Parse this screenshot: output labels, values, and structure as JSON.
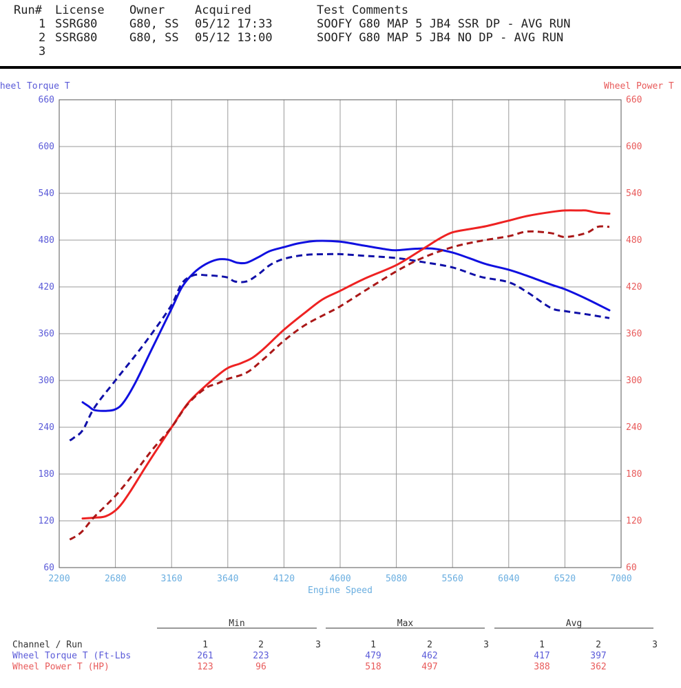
{
  "header": {
    "columns": [
      "Run#",
      "License",
      "Owner",
      "Acquired",
      "Test Comments"
    ],
    "rows": [
      {
        "run": "1",
        "license": "SSRG80",
        "owner": "G80, SS",
        "acquired": "05/12 17:33",
        "comment": "SOOFY G80 MAP 5 JB4 SSR DP - AVG RUN"
      },
      {
        "run": "2",
        "license": "SSRG80",
        "owner": "G80, SS",
        "acquired": "05/12 13:00",
        "comment": "SOOFY G80 MAP 5 JB4 NO DP - AVG RUN"
      },
      {
        "run": "3",
        "license": "",
        "owner": "",
        "acquired": "",
        "comment": ""
      }
    ]
  },
  "colors": {
    "torque_axis": "#5a5ad8",
    "power_axis": "#e85a5a",
    "xaxis": "#6aaee0",
    "torque_line": "#1010e0",
    "torque_dash": "#1010a8",
    "power_line": "#ee2222",
    "power_dash": "#aa1818",
    "grid": "#999999"
  },
  "chart_data": {
    "type": "line",
    "xlabel": "Engine Speed",
    "ylabel_left": "Wheel Torque T",
    "ylabel_right": "Wheel Power T",
    "xlim": [
      2200,
      7000
    ],
    "ylim": [
      60,
      660
    ],
    "x_ticks": [
      2200,
      2680,
      3160,
      3640,
      4120,
      4600,
      5080,
      5560,
      6040,
      6520,
      7000
    ],
    "y_ticks": [
      660,
      600,
      540,
      480,
      420,
      360,
      300,
      240,
      180,
      120,
      60
    ],
    "grid": true,
    "series": [
      {
        "run": "1",
        "channel": "torque",
        "style": "solid",
        "x": [
          2400,
          2450,
          2500,
          2600,
          2680,
          2750,
          2850,
          3000,
          3160,
          3250,
          3350,
          3450,
          3550,
          3640,
          3720,
          3800,
          3900,
          4000,
          4120,
          4250,
          4400,
          4600,
          4800,
          5000,
          5080,
          5250,
          5400,
          5560,
          5700,
          5850,
          6040,
          6200,
          6400,
          6520,
          6700,
          6900
        ],
        "y": [
          272,
          267,
          262,
          261,
          263,
          272,
          297,
          343,
          392,
          420,
          438,
          449,
          455,
          455,
          451,
          451,
          458,
          466,
          471,
          476,
          479,
          478,
          473,
          468,
          467,
          469,
          469,
          464,
          457,
          449,
          442,
          434,
          423,
          417,
          405,
          390
        ]
      },
      {
        "run": "2",
        "channel": "torque",
        "style": "dashed",
        "x": [
          2290,
          2320,
          2400,
          2500,
          2680,
          2850,
          3000,
          3160,
          3250,
          3350,
          3450,
          3550,
          3640,
          3700,
          3800,
          3900,
          4000,
          4120,
          4300,
          4500,
          4600,
          4800,
          5080,
          5300,
          5560,
          5800,
          6040,
          6200,
          6400,
          6520,
          6700,
          6900
        ],
        "y": [
          223,
          226,
          236,
          265,
          300,
          332,
          362,
          397,
          425,
          435,
          435,
          434,
          432,
          427,
          427,
          436,
          448,
          456,
          461,
          462,
          462,
          460,
          457,
          452,
          445,
          433,
          426,
          413,
          393,
          389,
          385,
          380
        ]
      },
      {
        "run": "1",
        "channel": "power",
        "style": "solid",
        "x": [
          2400,
          2500,
          2600,
          2700,
          2800,
          2950,
          3160,
          3300,
          3450,
          3550,
          3640,
          3750,
          3850,
          3950,
          4120,
          4300,
          4450,
          4600,
          4800,
          5080,
          5300,
          5450,
          5560,
          5700,
          5850,
          6040,
          6200,
          6400,
          6520,
          6650,
          6700,
          6800,
          6900
        ],
        "y": [
          123,
          124,
          126,
          136,
          156,
          192,
          240,
          271,
          293,
          306,
          316,
          322,
          329,
          341,
          365,
          387,
          404,
          415,
          430,
          448,
          468,
          482,
          490,
          494,
          498,
          505,
          511,
          516,
          518,
          518,
          518,
          515,
          514
        ]
      },
      {
        "run": "2",
        "channel": "power",
        "style": "dashed",
        "x": [
          2290,
          2340,
          2400,
          2500,
          2680,
          2850,
          3000,
          3160,
          3300,
          3450,
          3550,
          3640,
          3800,
          3950,
          4120,
          4300,
          4500,
          4600,
          4800,
          5080,
          5300,
          5560,
          5800,
          6040,
          6200,
          6400,
          6520,
          6700,
          6800,
          6900
        ],
        "y": [
          96,
          100,
          107,
          125,
          152,
          183,
          212,
          240,
          270,
          290,
          296,
          302,
          310,
          328,
          351,
          371,
          387,
          395,
          414,
          440,
          457,
          471,
          479,
          485,
          491,
          489,
          484,
          489,
          497,
          497
        ]
      }
    ],
    "stats": {
      "group_labels": [
        "Min",
        "Max",
        "Avg"
      ],
      "header_label": "Channel / Run",
      "run_labels": [
        "1",
        "2",
        "3"
      ],
      "rows": [
        {
          "label": "Wheel Torque T (Ft-Lbs",
          "min": [
            "261",
            "223",
            ""
          ],
          "max": [
            "479",
            "462",
            ""
          ],
          "avg": [
            "417",
            "397",
            ""
          ]
        },
        {
          "label": "Wheel Power T (HP)",
          "min": [
            "123",
            "96",
            ""
          ],
          "max": [
            "518",
            "497",
            ""
          ],
          "avg": [
            "388",
            "362",
            ""
          ]
        }
      ]
    }
  }
}
